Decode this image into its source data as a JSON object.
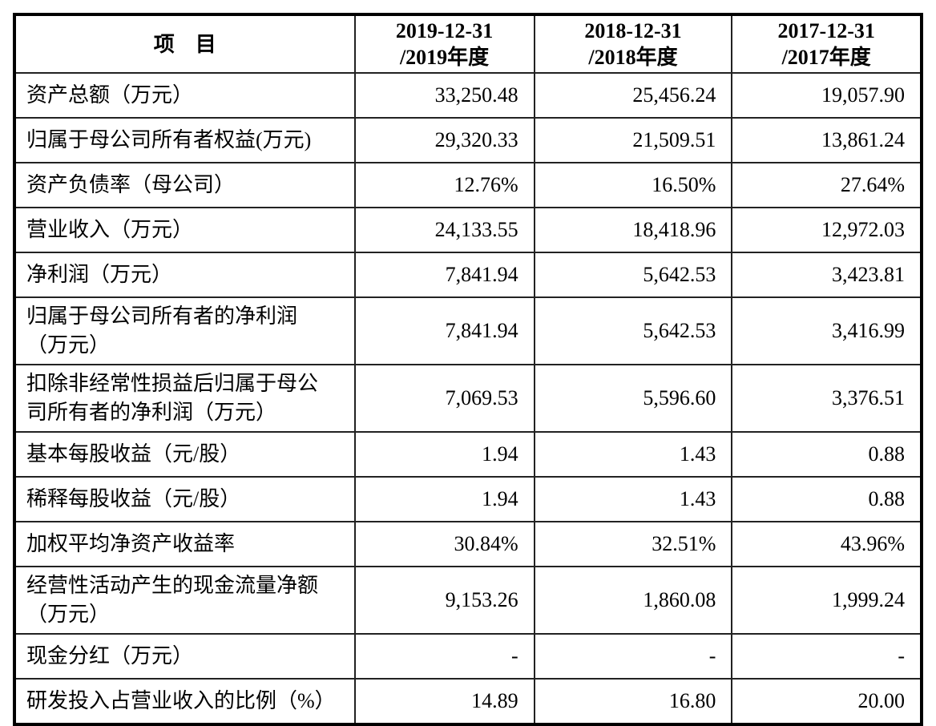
{
  "document": {
    "kind": "financial-summary-table",
    "text_color": "#000000",
    "border_color": "#000000",
    "background_color": "#ffffff"
  },
  "table": {
    "header": {
      "item_label": "项　目",
      "periods": [
        {
          "line1": "2019-12-31",
          "line2": "/2019年度"
        },
        {
          "line1": "2018-12-31",
          "line2": "/2018年度"
        },
        {
          "line1": "2017-12-31",
          "line2": "/2017年度"
        }
      ]
    },
    "rows": [
      {
        "label": "资产总额（万元）",
        "two_line": false,
        "values": [
          "33,250.48",
          "25,456.24",
          "19,057.90"
        ]
      },
      {
        "label": "归属于母公司所有者权益(万元)",
        "two_line": false,
        "values": [
          "29,320.33",
          "21,509.51",
          "13,861.24"
        ]
      },
      {
        "label": "资产负债率（母公司）",
        "two_line": false,
        "values": [
          "12.76%",
          "16.50%",
          "27.64%"
        ]
      },
      {
        "label": "营业收入（万元）",
        "two_line": false,
        "values": [
          "24,133.55",
          "18,418.96",
          "12,972.03"
        ]
      },
      {
        "label": "净利润（万元）",
        "two_line": false,
        "values": [
          "7,841.94",
          "5,642.53",
          "3,423.81"
        ]
      },
      {
        "label": "归属于母公司所有者的净利润\n（万元）",
        "two_line": true,
        "values": [
          "7,841.94",
          "5,642.53",
          "3,416.99"
        ]
      },
      {
        "label": "扣除非经常性损益后归属于母公\n司所有者的净利润（万元）",
        "two_line": true,
        "values": [
          "7,069.53",
          "5,596.60",
          "3,376.51"
        ]
      },
      {
        "label": "基本每股收益（元/股）",
        "two_line": false,
        "values": [
          "1.94",
          "1.43",
          "0.88"
        ]
      },
      {
        "label": "稀释每股收益（元/股）",
        "two_line": false,
        "values": [
          "1.94",
          "1.43",
          "0.88"
        ]
      },
      {
        "label": "加权平均净资产收益率",
        "two_line": false,
        "values": [
          "30.84%",
          "32.51%",
          "43.96%"
        ]
      },
      {
        "label": "经营性活动产生的现金流量净额\n（万元）",
        "two_line": true,
        "values": [
          "9,153.26",
          "1,860.08",
          "1,999.24"
        ]
      },
      {
        "label": "现金分红（万元）",
        "two_line": false,
        "values": [
          "-",
          "-",
          "-"
        ]
      },
      {
        "label": "研发投入占营业收入的比例（%）",
        "two_line": false,
        "values": [
          "14.89",
          "16.80",
          "20.00"
        ]
      }
    ]
  }
}
